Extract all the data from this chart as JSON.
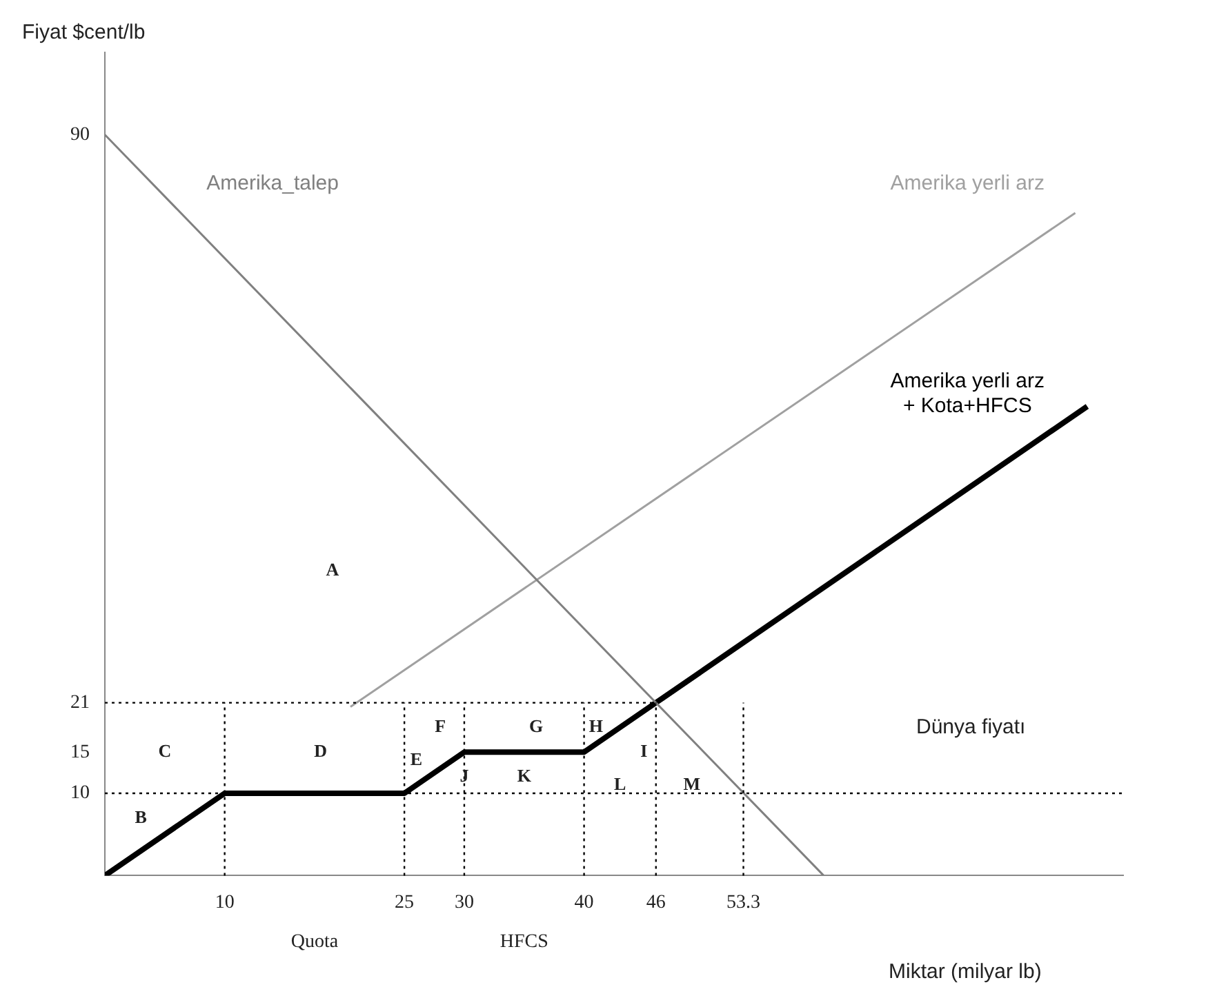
{
  "chart_data": {
    "type": "line",
    "xlabel": "Miktar (milyar lb)",
    "ylabel": "Fiyat $cent/lb",
    "xlim": [
      0,
      85
    ],
    "ylim": [
      0,
      100
    ],
    "xticks": [
      10,
      25,
      30,
      40,
      46,
      53.3
    ],
    "yticks": [
      10,
      15,
      21,
      90
    ],
    "grid": false,
    "legend": false,
    "marker": "none",
    "series": [
      {
        "name": "Amerika_talep",
        "color": "#808080",
        "x": [
          0,
          60
        ],
        "values": [
          90,
          0
        ]
      },
      {
        "name": "Amerika yerli arz",
        "color": "#a0a0a0",
        "x": [
          20.5,
          81
        ],
        "values": [
          20.5,
          80.5
        ]
      },
      {
        "name": "Amerika yerli arz + Kota+HFCS",
        "color": "#000000",
        "x": [
          0,
          10,
          25,
          30,
          40,
          46,
          82
        ],
        "values": [
          0,
          10,
          10,
          15,
          15,
          21,
          57
        ]
      }
    ],
    "ref_lines": [
      {
        "axis": "y",
        "value": 10,
        "label": "Dünya fiyatı",
        "line_style": "dotted",
        "color": "#000000"
      },
      {
        "axis": "y",
        "value": 21,
        "line_style": "dotted",
        "color": "#000000"
      },
      {
        "axis": "x",
        "value": 10,
        "line_style": "dotted",
        "color": "#000000"
      },
      {
        "axis": "x",
        "value": 25,
        "line_style": "dotted",
        "color": "#000000"
      },
      {
        "axis": "x",
        "value": 30,
        "line_style": "dotted",
        "color": "#000000"
      },
      {
        "axis": "x",
        "value": 40,
        "line_style": "dotted",
        "color": "#000000"
      },
      {
        "axis": "x",
        "value": 46,
        "line_style": "dotted",
        "color": "#000000"
      },
      {
        "axis": "x",
        "value": 53.3,
        "line_style": "dotted",
        "color": "#000000"
      }
    ],
    "annotations": [
      "A",
      "B",
      "C",
      "D",
      "E",
      "F",
      "G",
      "H",
      "I",
      "J",
      "K",
      "L",
      "M",
      "Quota",
      "HFCS"
    ]
  }
}
